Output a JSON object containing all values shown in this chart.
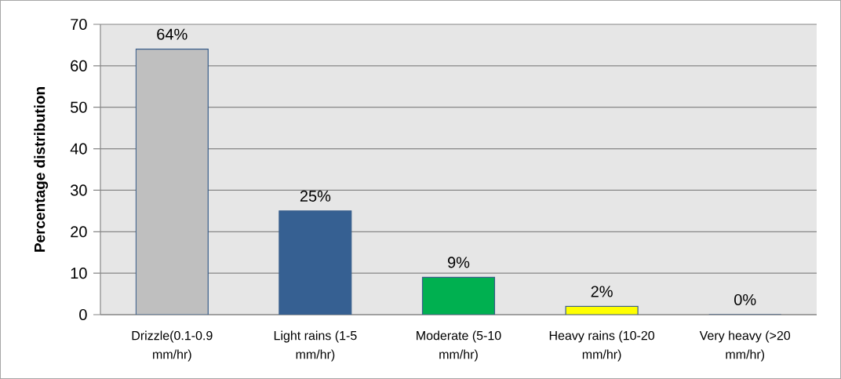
{
  "chart_data": {
    "type": "bar",
    "ylabel": "Percentage distribution",
    "categories": [
      "Drizzle(0.1-0.9 mm/hr)",
      "Light rains (1-5 mm/hr)",
      "Moderate (5-10 mm/hr)",
      "Heavy rains (10-20 mm/hr)",
      "Very heavy (>20 mm/hr)"
    ],
    "values": [
      64,
      25,
      9,
      2,
      0
    ],
    "colors": [
      "#bfbfbf",
      "#366092",
      "#00b050",
      "#ffff00",
      "#4f81bd"
    ],
    "value_labels": [
      "64%",
      "25%",
      "9%",
      "2%",
      "0%"
    ],
    "ylim": [
      0,
      70
    ],
    "yticks": [
      0,
      10,
      20,
      30,
      40,
      50,
      60,
      70
    ],
    "grid": "y"
  }
}
